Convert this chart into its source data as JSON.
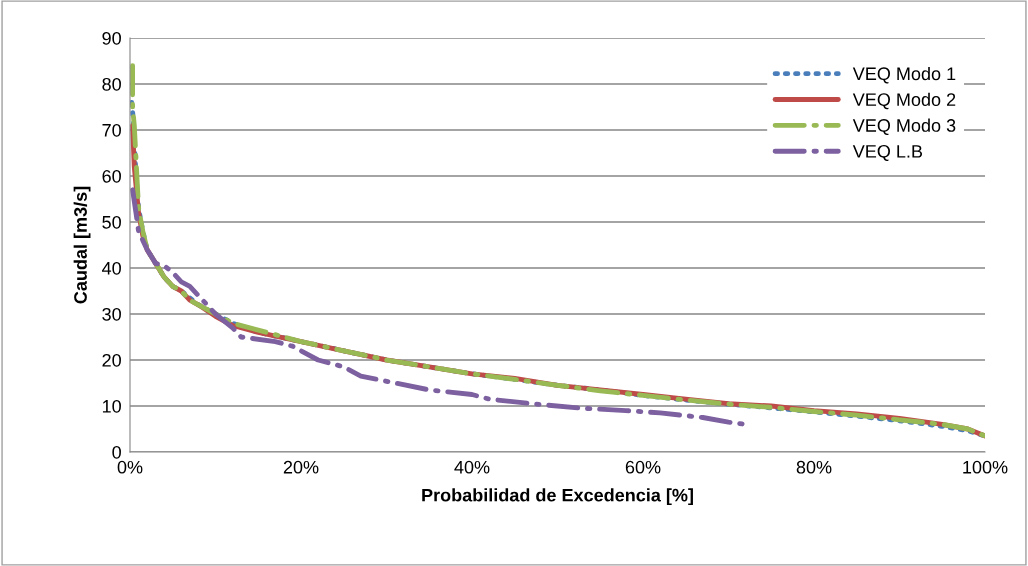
{
  "chart_data": {
    "type": "line",
    "xlabel": "Probabilidad de Excedencia [%]",
    "ylabel": "Caudal [m3/s]",
    "xlim": [
      0,
      100
    ],
    "ylim": [
      0,
      90
    ],
    "xticks": [
      {
        "value": 0,
        "label": "0%"
      },
      {
        "value": 20,
        "label": "20%"
      },
      {
        "value": 40,
        "label": "40%"
      },
      {
        "value": 60,
        "label": "60%"
      },
      {
        "value": 80,
        "label": "80%"
      },
      {
        "value": 100,
        "label": "100%"
      }
    ],
    "yticks": [
      0,
      10,
      20,
      30,
      40,
      50,
      60,
      70,
      80,
      90
    ],
    "grid": "y",
    "legend": "top right",
    "marker": "none",
    "series": [
      {
        "name": "VEQ Modo 1",
        "color": "#4a7ebb",
        "line_style": "dotted",
        "x": [
          0.2,
          0.4,
          0.7,
          1,
          1.5,
          2,
          3,
          4,
          5,
          6,
          7,
          8,
          10,
          12,
          15,
          20,
          25,
          30,
          35,
          40,
          45,
          50,
          55,
          60,
          65,
          70,
          75,
          80,
          85,
          90,
          95,
          98,
          100
        ],
        "values": [
          76,
          72,
          60,
          53,
          48,
          44,
          41,
          38,
          36,
          35,
          33.5,
          32,
          30,
          28,
          26,
          24,
          22,
          20,
          18.5,
          17,
          15.8,
          14.5,
          13.5,
          12.3,
          11.3,
          10.4,
          9.6,
          8.7,
          7.8,
          6.8,
          5.6,
          4.6,
          3.5
        ]
      },
      {
        "name": "VEQ Modo 2",
        "color": "#be4b48",
        "line_style": "solid",
        "x": [
          0.3,
          0.5,
          1,
          1.5,
          2,
          3,
          4,
          5,
          6,
          7,
          8,
          10,
          12,
          15,
          20,
          25,
          30,
          35,
          40,
          45,
          50,
          55,
          60,
          65,
          70,
          75,
          80,
          85,
          90,
          95,
          98,
          100
        ],
        "values": [
          71,
          62,
          52,
          47,
          44,
          41,
          38,
          36,
          35,
          33,
          32,
          29.5,
          27.5,
          26,
          24,
          22,
          20,
          18.5,
          17,
          16,
          14.5,
          13.5,
          12.5,
          11.5,
          10.5,
          10,
          9,
          8.3,
          7.3,
          6,
          5,
          3.5
        ]
      },
      {
        "name": "VEQ Modo 3",
        "color": "#98b954",
        "line_style": "dashed",
        "x": [
          0.3,
          0.3,
          0.5,
          1,
          1.5,
          2,
          3,
          4,
          5,
          6,
          7,
          8,
          10,
          12,
          15,
          20,
          25,
          30,
          35,
          40,
          45,
          50,
          55,
          60,
          65,
          70,
          75,
          80,
          85,
          90,
          95,
          98,
          100
        ],
        "values": [
          84,
          75,
          71,
          53,
          48,
          44,
          41,
          38,
          36,
          35,
          33,
          32,
          30,
          28,
          26.5,
          24,
          22,
          20,
          18.5,
          17,
          15.8,
          14.5,
          13.3,
          12.3,
          11.3,
          10.4,
          9.7,
          8.8,
          8,
          7,
          6,
          5,
          3.5
        ]
      },
      {
        "name": "VEQ L.B",
        "color": "#7d60a0",
        "line_style": "dashed",
        "x": [
          0.3,
          0.7,
          1,
          1.5,
          2,
          3,
          4,
          5,
          6,
          7,
          8,
          10,
          12,
          13,
          17,
          19,
          22,
          25,
          27,
          31,
          35,
          40,
          42,
          47,
          53,
          58,
          62,
          67,
          70,
          72
        ],
        "values": [
          57,
          52,
          48,
          46,
          44,
          41,
          40.5,
          39,
          37,
          36,
          34,
          30,
          27,
          25,
          24,
          23,
          20,
          18.5,
          16.5,
          15,
          13.5,
          12.5,
          11.5,
          10.5,
          9.5,
          9,
          8.5,
          7.5,
          6.5,
          6
        ]
      }
    ]
  }
}
